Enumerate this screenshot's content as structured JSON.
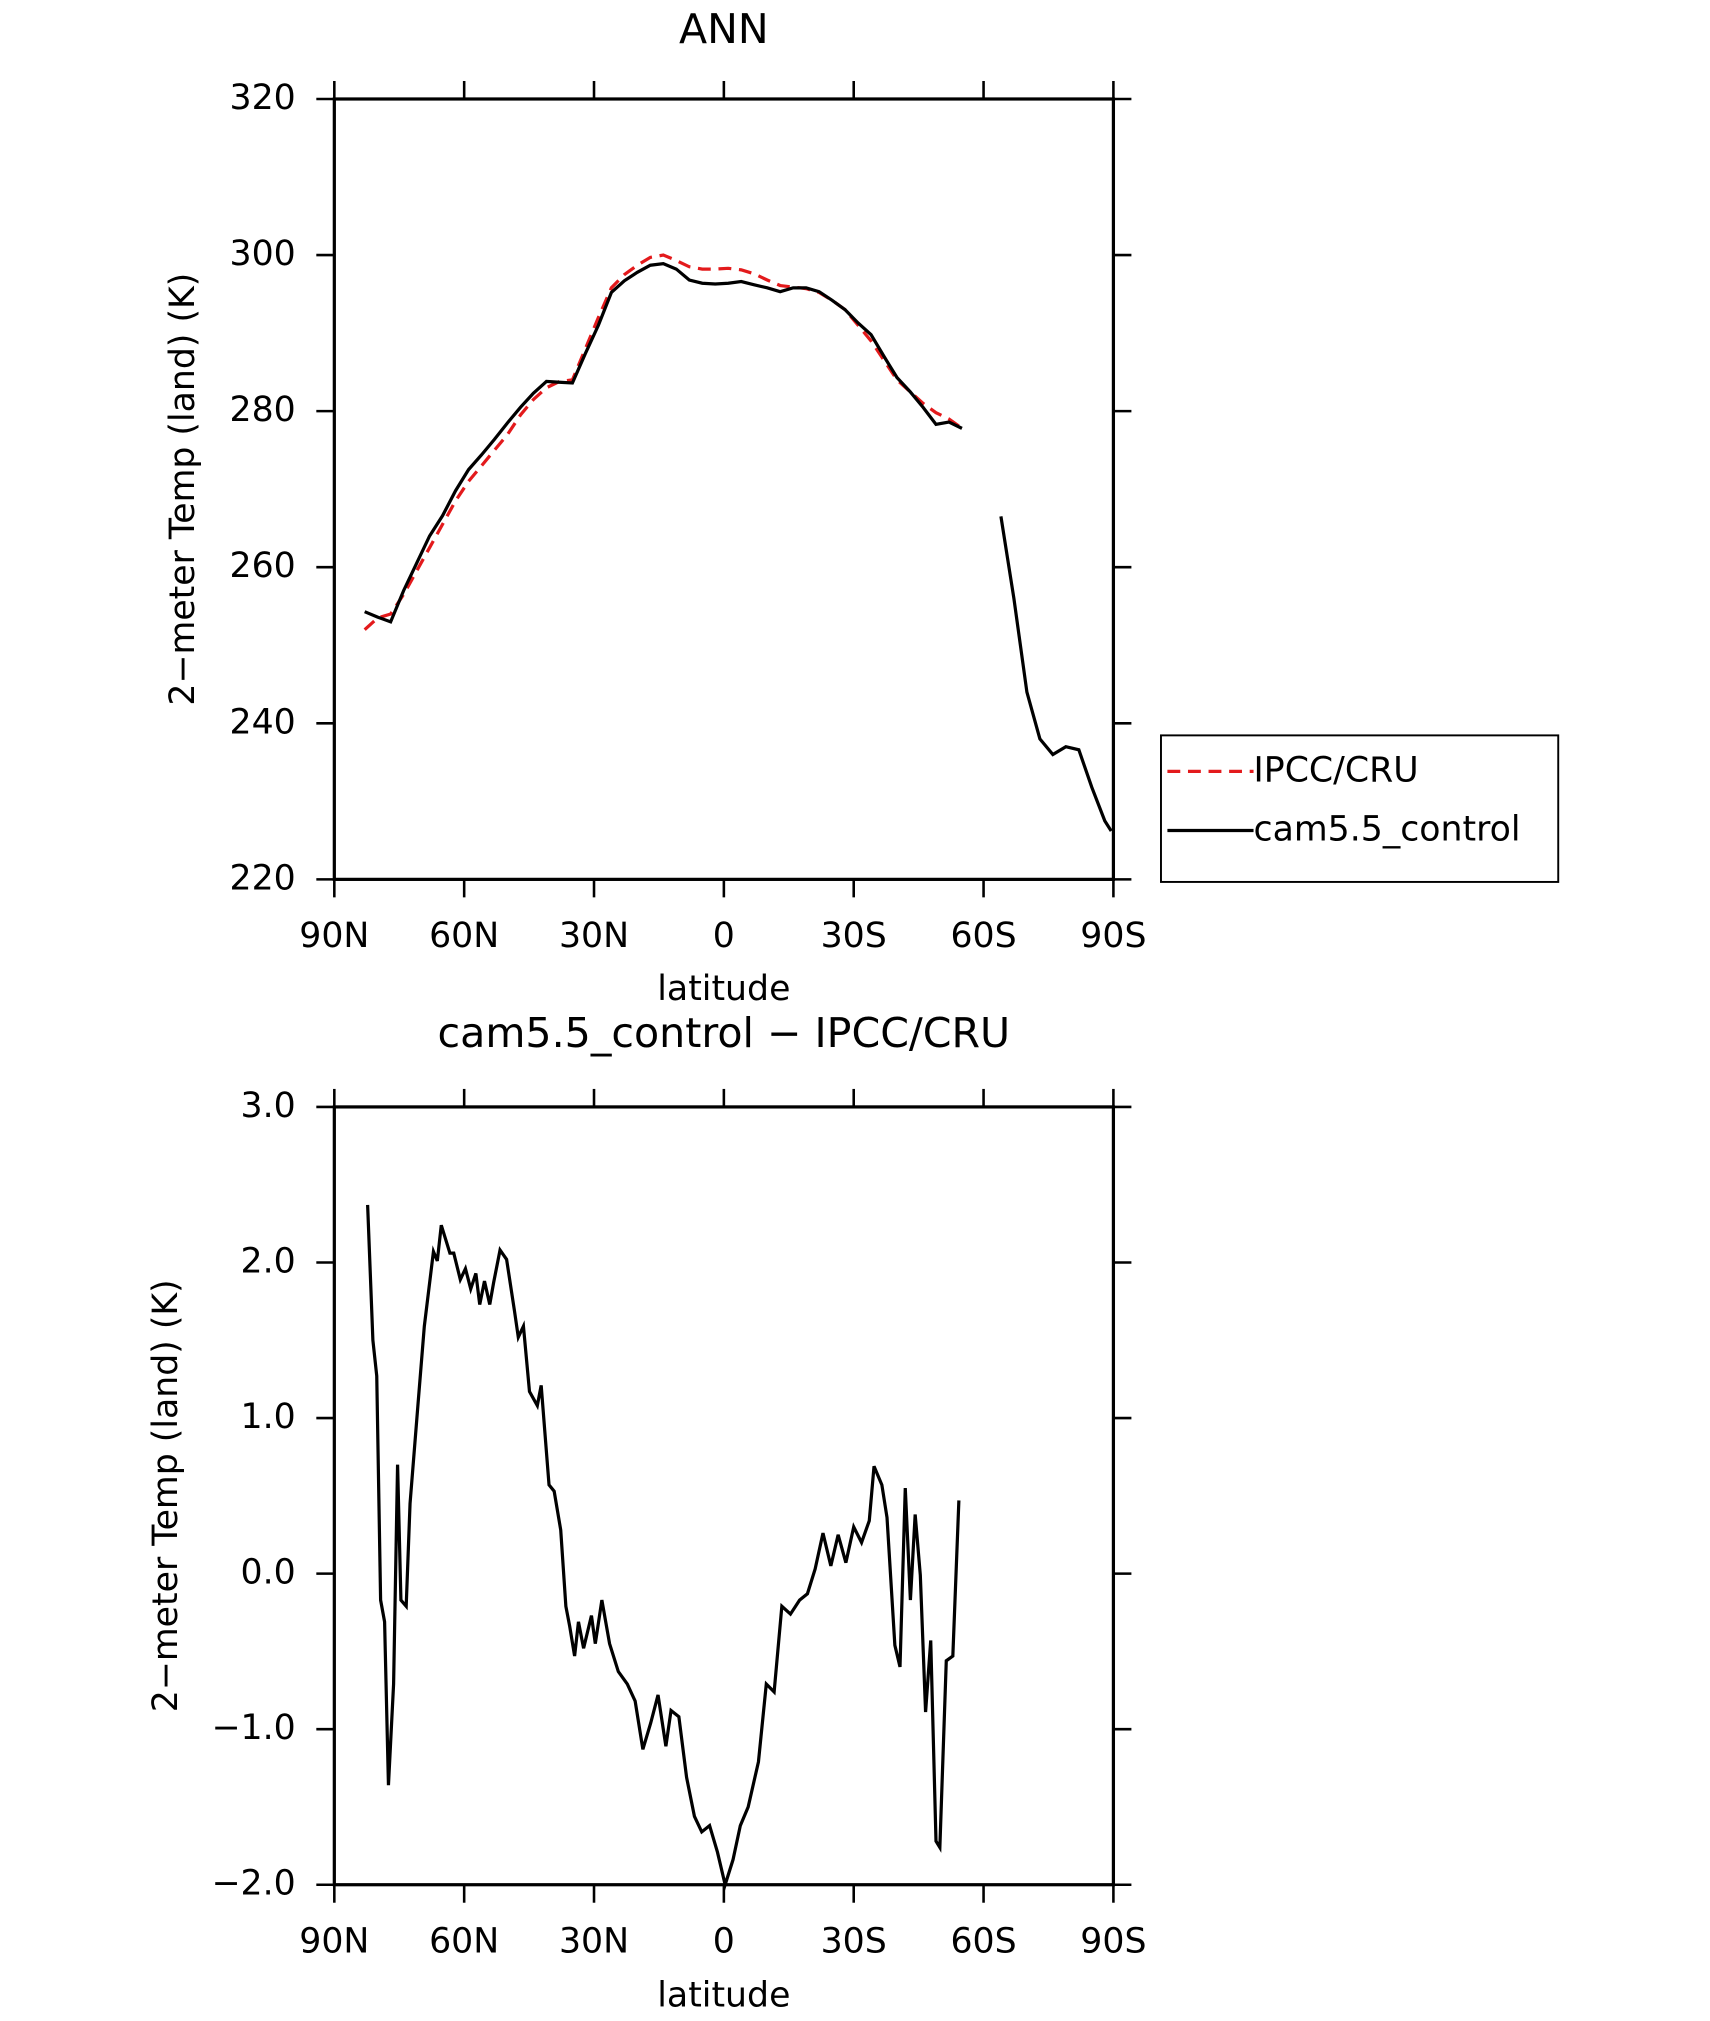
{
  "chart_data": [
    {
      "type": "line",
      "title": "ANN",
      "x_label": "latitude",
      "y_label": "2−meter Temp (land) (K)",
      "x": [
        83,
        80,
        77,
        74,
        71,
        68,
        65,
        62,
        59,
        56,
        53,
        50,
        47,
        44,
        41,
        38,
        35,
        32,
        29,
        26,
        23,
        20,
        17,
        14,
        11,
        8,
        5,
        2,
        -1,
        -4,
        -7,
        -10,
        -13,
        -16,
        -19,
        -22,
        -25,
        -28,
        -31,
        -34,
        -37,
        -40,
        -43,
        -46,
        -49,
        -52,
        -55,
        -58,
        -61,
        -64,
        -67,
        -70,
        -73,
        -76,
        -79,
        -82,
        -85,
        -88,
        -89.5
      ],
      "series": [
        {
          "name": "IPCC/CRU",
          "color": "#e31a1c",
          "linestyle": "dashed",
          "values": [
            252,
            253.5,
            254,
            256.5,
            259.5,
            262.5,
            265.5,
            268.5,
            271,
            273,
            275,
            277,
            279.5,
            281.5,
            283,
            283.8,
            284,
            288,
            292,
            295.8,
            297.5,
            298.7,
            299.7,
            300,
            299.3,
            298.5,
            298.2,
            298.2,
            298.3,
            298.1,
            297.6,
            296.8,
            296.1,
            295.9,
            295.7,
            295.2,
            294.2,
            293,
            291,
            289,
            286.5,
            284,
            282.5,
            281,
            279.8,
            279,
            277.8,
            null,
            null,
            null,
            null,
            null,
            null,
            null,
            null,
            null,
            null,
            null,
            null
          ]
        },
        {
          "name": "cam5.5_control",
          "color": "#000000",
          "linestyle": "solid",
          "values": [
            254.3,
            253.6,
            253,
            257,
            260.5,
            264,
            266.6,
            269.8,
            272.5,
            274.4,
            276.4,
            278.5,
            280.5,
            282.3,
            283.8,
            283.7,
            283.6,
            287.4,
            291,
            295.2,
            296.7,
            297.8,
            298.7,
            298.9,
            298.2,
            296.8,
            296.4,
            296.3,
            296.4,
            296.6,
            296.2,
            295.8,
            295.3,
            295.8,
            295.8,
            295.3,
            294.2,
            293,
            291.3,
            289.8,
            287,
            284.3,
            282.5,
            280.5,
            278.3,
            278.6,
            277.8,
            null,
            null,
            266.5,
            256,
            244,
            238,
            236,
            237,
            236.6,
            231.8,
            227.5,
            226.2
          ]
        }
      ],
      "xlim": [
        90,
        -90
      ],
      "xticks": [
        {
          "value": 90,
          "label": "90N"
        },
        {
          "value": 60,
          "label": "60N"
        },
        {
          "value": 30,
          "label": "30N"
        },
        0,
        {
          "value": -30,
          "label": "30S"
        },
        {
          "value": -60,
          "label": "60S"
        },
        {
          "value": -90,
          "label": "90S"
        }
      ],
      "ylim": [
        220,
        320
      ],
      "yticks": [
        220,
        240,
        260,
        280,
        300,
        320
      ],
      "grid": false,
      "legend": "right"
    },
    {
      "type": "line",
      "title": "cam5.5_control − IPCC/CRU",
      "x_label": "latitude",
      "y_label": "2−meter Temp (land) (K)",
      "x": [
        82.3,
        81.1,
        80.2,
        79.3,
        78.4,
        77.5,
        76.3,
        75.4,
        74.6,
        73.4,
        72.5,
        70.7,
        69.2,
        67.1,
        66.2,
        65.3,
        63.3,
        62.4,
        60.9,
        59.7,
        58.5,
        57.3,
        56.4,
        55.3,
        54.1,
        53.2,
        51.7,
        50.2,
        48.4,
        47.5,
        46.3,
        44.9,
        43.1,
        42.2,
        40.4,
        39.2,
        37.7,
        36.5,
        35.6,
        34.5,
        33.6,
        32.4,
        30.6,
        29.7,
        28.2,
        26.4,
        24.4,
        22.3,
        20.5,
        18.7,
        16.9,
        15.2,
        13.4,
        12.2,
        10.4,
        8.6,
        6.8,
        5.1,
        3.3,
        1.5,
        -0.3,
        -2.1,
        -3.8,
        -5.6,
        -8,
        -9.8,
        -11.6,
        -13.4,
        -15.4,
        -17.5,
        -19.3,
        -21.1,
        -22.9,
        -24.7,
        -26.4,
        -28.2,
        -30,
        -31.8,
        -33.6,
        -34.7,
        -36.5,
        -37.7,
        -39.5,
        -40.7,
        -41.9,
        -43.1,
        -44.2,
        -45.4,
        -46.6,
        -47.8,
        -49,
        -49.9,
        -51.4,
        -52.9,
        -54.3
      ],
      "values": [
        2.37,
        1.5,
        1.27,
        -0.17,
        -0.31,
        -1.36,
        -0.71,
        0.7,
        -0.17,
        -0.21,
        0.45,
        1.08,
        1.59,
        2.07,
        2.01,
        2.24,
        2.06,
        2.06,
        1.89,
        1.96,
        1.83,
        1.93,
        1.73,
        1.88,
        1.73,
        1.87,
        2.08,
        2.02,
        1.69,
        1.52,
        1.59,
        1.17,
        1.08,
        1.21,
        0.57,
        0.53,
        0.28,
        -0.21,
        -0.34,
        -0.53,
        -0.31,
        -0.48,
        -0.27,
        -0.45,
        -0.17,
        -0.45,
        -0.63,
        -0.71,
        -0.82,
        -1.13,
        -0.96,
        -0.78,
        -1.11,
        -0.88,
        -0.92,
        -1.31,
        -1.56,
        -1.66,
        -1.62,
        -1.79,
        -2.0,
        -1.84,
        -1.62,
        -1.5,
        -1.21,
        -0.71,
        -0.76,
        -0.21,
        -0.26,
        -0.17,
        -0.13,
        0.03,
        0.26,
        0.05,
        0.25,
        0.07,
        0.3,
        0.2,
        0.34,
        0.69,
        0.57,
        0.36,
        -0.46,
        -0.6,
        0.55,
        -0.17,
        0.38,
        -0.01,
        -0.89,
        -0.43,
        -1.72,
        -1.76,
        -0.56,
        -0.53,
        0.47
      ],
      "color": "#000000",
      "xlim": [
        90,
        -90
      ],
      "xticks": [
        {
          "value": 90,
          "label": "90N"
        },
        {
          "value": 60,
          "label": "60N"
        },
        {
          "value": 30,
          "label": "30N"
        },
        0,
        {
          "value": -30,
          "label": "30S"
        },
        {
          "value": -60,
          "label": "60S"
        },
        {
          "value": -90,
          "label": "90S"
        }
      ],
      "ylim": [
        -2,
        3
      ],
      "yticks": [
        {
          "value": -2,
          "label": "−2.0"
        },
        {
          "value": -1,
          "label": "−1.0"
        },
        {
          "value": 0,
          "label": "0.0"
        },
        {
          "value": 1,
          "label": "1.0"
        },
        {
          "value": 2,
          "label": "2.0"
        },
        {
          "value": 3,
          "label": "3.0"
        }
      ],
      "grid": false
    }
  ]
}
